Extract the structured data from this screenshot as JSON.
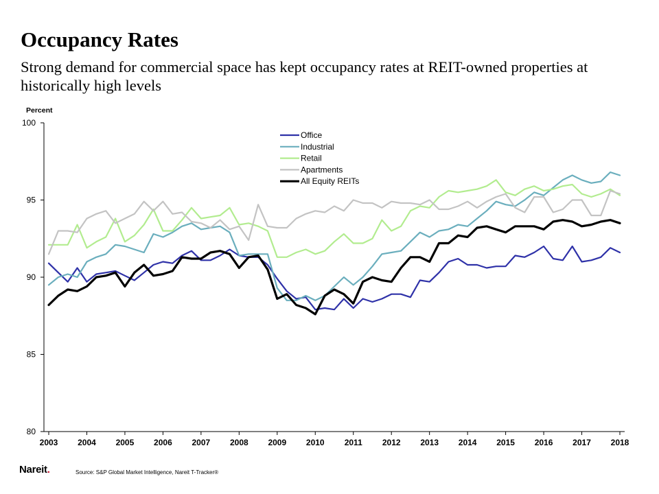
{
  "header": {
    "title": "Occupancy Rates",
    "subtitle": "Strong demand for commercial space has kept occupancy rates at REIT-owned properties at historically high levels"
  },
  "footer": {
    "logo_text": "Nareit",
    "logo_mark": ".",
    "source": "Source: S&P Global Market Intelligence, Nareit T-Tracker®"
  },
  "chart_data": {
    "type": "line",
    "title": "",
    "xlabel": "",
    "ylabel": "Percent",
    "ylim": [
      80,
      100
    ],
    "yticks": [
      80,
      85,
      90,
      95,
      100
    ],
    "xlim": [
      2003,
      2018
    ],
    "xticks": [
      2003,
      2004,
      2005,
      2006,
      2007,
      2008,
      2009,
      2010,
      2011,
      2012,
      2013,
      2014,
      2015,
      2016,
      2017,
      2018
    ],
    "legend_position": "top-center",
    "grid": false,
    "x_start": 2003.0,
    "x_step": 0.25,
    "series": [
      {
        "name": "Office",
        "color": "#2e31a8",
        "values": [
          90.9,
          90.3,
          89.7,
          90.6,
          89.7,
          90.2,
          90.3,
          90.4,
          90.1,
          89.8,
          90.3,
          90.8,
          91.0,
          90.9,
          91.4,
          91.7,
          91.1,
          91.1,
          91.4,
          91.8,
          91.4,
          91.3,
          91.3,
          90.8,
          89.9,
          89.1,
          88.6,
          88.7,
          87.9,
          88.0,
          87.9,
          88.6,
          88.0,
          88.6,
          88.4,
          88.6,
          88.9,
          88.9,
          88.7,
          89.8,
          89.7,
          90.3,
          91.0,
          91.2,
          90.8,
          90.8,
          90.6,
          90.7,
          90.7,
          91.4,
          91.3,
          91.6,
          92.0,
          91.2,
          91.1,
          92.0,
          91.0,
          91.1,
          91.3,
          91.9,
          91.6
        ]
      },
      {
        "name": "Industrial",
        "color": "#6aaebd",
        "values": [
          89.5,
          90.0,
          90.2,
          90.0,
          91.0,
          91.3,
          91.5,
          92.1,
          92.0,
          91.8,
          91.6,
          92.8,
          92.6,
          92.9,
          93.3,
          93.5,
          93.1,
          93.2,
          93.3,
          92.9,
          91.4,
          91.5,
          91.5,
          91.5,
          89.3,
          88.5,
          88.5,
          88.8,
          88.5,
          88.8,
          89.4,
          90.0,
          89.5,
          90.0,
          90.7,
          91.5,
          91.6,
          91.7,
          92.3,
          92.9,
          92.6,
          93.0,
          93.1,
          93.4,
          93.3,
          93.8,
          94.3,
          94.9,
          94.7,
          94.6,
          95.0,
          95.5,
          95.3,
          95.8,
          96.3,
          96.6,
          96.3,
          96.1,
          96.2,
          96.8,
          96.6
        ]
      },
      {
        "name": "Retail",
        "color": "#b2ec8f",
        "values": [
          92.1,
          92.1,
          92.1,
          93.4,
          91.9,
          92.3,
          92.6,
          93.8,
          92.3,
          92.7,
          93.4,
          94.4,
          93.0,
          93.0,
          93.7,
          94.5,
          93.8,
          93.9,
          94.0,
          94.5,
          93.4,
          93.5,
          93.3,
          93.0,
          91.3,
          91.3,
          91.6,
          91.8,
          91.5,
          91.7,
          92.3,
          92.8,
          92.2,
          92.2,
          92.5,
          93.7,
          93.0,
          93.3,
          94.3,
          94.6,
          94.5,
          95.2,
          95.6,
          95.5,
          95.6,
          95.7,
          95.9,
          96.3,
          95.5,
          95.3,
          95.7,
          95.9,
          95.6,
          95.7,
          95.9,
          96.0,
          95.4,
          95.2,
          95.4,
          95.7,
          95.3
        ]
      },
      {
        "name": "Apartments",
        "color": "#c3c3c3",
        "values": [
          91.5,
          93.0,
          93.0,
          92.9,
          93.8,
          94.1,
          94.3,
          93.5,
          93.8,
          94.1,
          94.9,
          94.3,
          94.9,
          94.1,
          94.2,
          93.6,
          93.5,
          93.2,
          93.7,
          93.1,
          93.3,
          92.4,
          94.7,
          93.3,
          93.2,
          93.2,
          93.8,
          94.1,
          94.3,
          94.2,
          94.6,
          94.3,
          95.0,
          94.8,
          94.8,
          94.5,
          94.9,
          94.8,
          94.8,
          94.7,
          95.0,
          94.4,
          94.4,
          94.6,
          94.9,
          94.5,
          94.9,
          95.2,
          95.4,
          94.5,
          94.2,
          95.2,
          95.2,
          94.2,
          94.4,
          95.0,
          95.0,
          94.0,
          94.0,
          95.6,
          95.4
        ]
      },
      {
        "name": "All Equity REITs",
        "color": "#000000",
        "values": [
          88.2,
          88.8,
          89.2,
          89.1,
          89.4,
          90.0,
          90.1,
          90.3,
          89.4,
          90.3,
          90.8,
          90.1,
          90.2,
          90.4,
          91.3,
          91.2,
          91.2,
          91.6,
          91.7,
          91.5,
          90.6,
          91.3,
          91.4,
          90.5,
          88.6,
          88.9,
          88.2,
          88.0,
          87.6,
          88.8,
          89.2,
          88.9,
          88.3,
          89.7,
          90.0,
          89.8,
          89.7,
          90.6,
          91.3,
          91.3,
          91.0,
          92.2,
          92.2,
          92.7,
          92.6,
          93.2,
          93.3,
          93.1,
          92.9,
          93.3,
          93.3,
          93.3,
          93.1,
          93.6,
          93.7,
          93.6,
          93.3,
          93.4,
          93.6,
          93.7,
          93.5
        ]
      }
    ]
  }
}
